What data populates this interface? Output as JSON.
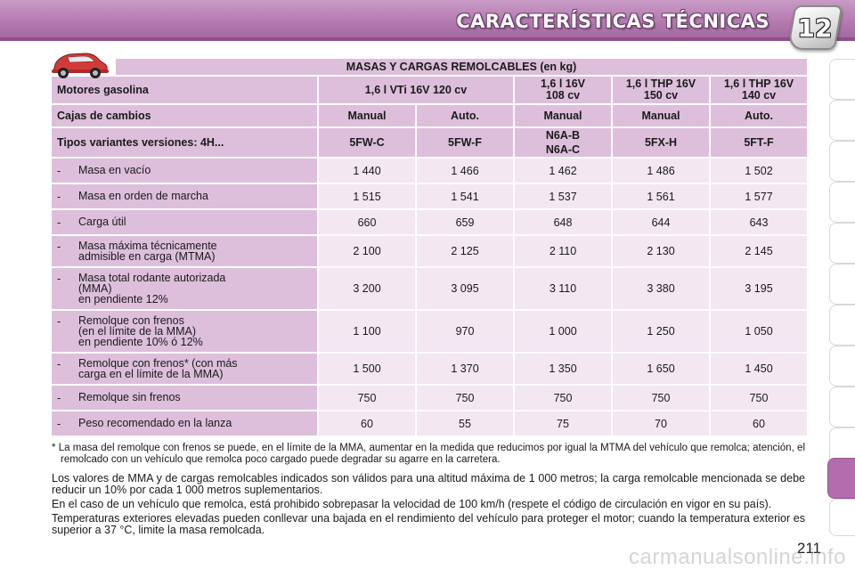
{
  "header": {
    "title": "CARACTERÍSTICAS TÉCNICAS",
    "chapter_number": "12"
  },
  "table": {
    "title": "MASAS Y CARGAS REMOLCABLES (en kg)",
    "engines_label": "Motores gasolina",
    "engines": [
      "1,6 l VTi 16V 120 cv",
      "1,6 l 16V\n108 cv",
      "1,6 l THP 16V\n150 cv",
      "1,6 l THP 16V\n140 cv"
    ],
    "gearbox_label": "Cajas de cambios",
    "gearboxes": [
      "Manual",
      "Auto.",
      "Manual",
      "Manual",
      "Auto."
    ],
    "variants_label": "Tipos variantes versiones: 4H...",
    "variants": [
      "5FW-C",
      "5FW-F",
      "N6A-B\nN6A-C",
      "5FX-H",
      "5FT-F"
    ],
    "rows": [
      {
        "label": "Masa en vacío",
        "values": [
          "1 440",
          "1 466",
          "1 462",
          "1 486",
          "1 502"
        ]
      },
      {
        "label": "Masa en orden de marcha",
        "values": [
          "1 515",
          "1 541",
          "1 537",
          "1 561",
          "1 577"
        ]
      },
      {
        "label": "Carga útil",
        "values": [
          "660",
          "659",
          "648",
          "644",
          "643"
        ]
      },
      {
        "label": "Masa máxima técnicamente\nadmisible en carga (MTMA)",
        "values": [
          "2 100",
          "2 125",
          "2 110",
          "2 130",
          "2 145"
        ]
      },
      {
        "label": "Masa total rodante autorizada\n(MMA)\nen pendiente 12%",
        "values": [
          "3 200",
          "3 095",
          "3 110",
          "3 380",
          "3 195"
        ]
      },
      {
        "label": "Remolque con frenos\n(en el límite de la MMA)\nen pendiente 10% ó 12%",
        "values": [
          "1 100",
          "970",
          "1 000",
          "1 250",
          "1 050"
        ]
      },
      {
        "label": "Remolque con frenos* (con más\ncarga en el límite de la MMA)",
        "values": [
          "1 500",
          "1 370",
          "1 350",
          "1 650",
          "1 450"
        ]
      },
      {
        "label": "Remolque sin frenos",
        "values": [
          "750",
          "750",
          "750",
          "750",
          "750"
        ]
      },
      {
        "label": "Peso recomendado en la lanza",
        "values": [
          "60",
          "55",
          "75",
          "70",
          "60"
        ]
      }
    ]
  },
  "notes": {
    "footnote": "* La masa del remolque con frenos se puede, en el límite de la MMA, aumentar en la medida que reducimos por igual la MTMA del vehículo que remolca; atención, el remolcado con un vehículo que remolca poco cargado puede degradar su agarre en la carretera.",
    "p1": "Los valores de MMA y de cargas remolcables indicados son válidos para una altitud máxima de 1 000 metros; la carga remolcable mencionada se debe reducir un 10% por cada 1 000 metros suplementarios.",
    "p2": "En el caso de un vehículo que remolca, está prohibido sobrepasar la velocidad de 100 km/h (respete el código de circulación en vigor en su país).",
    "p3": "Temperaturas exteriores elevadas pueden conllevar una bajada en el rendimiento del vehículo para proteger el motor; cuando la temperatura exterior es superior a 37 °C, limite la masa remolcada."
  },
  "page_number": "211",
  "watermark": "carmanualsonline.info",
  "colors": {
    "header_band": "#b47ab0",
    "header_cell": "#ddbfdb",
    "data_cell": "#f3e7f2",
    "active_tab": "#b56cae",
    "car": "#d23a3a"
  },
  "icons": {
    "car": "car-icon",
    "chapter_badge": "chapter-badge"
  }
}
